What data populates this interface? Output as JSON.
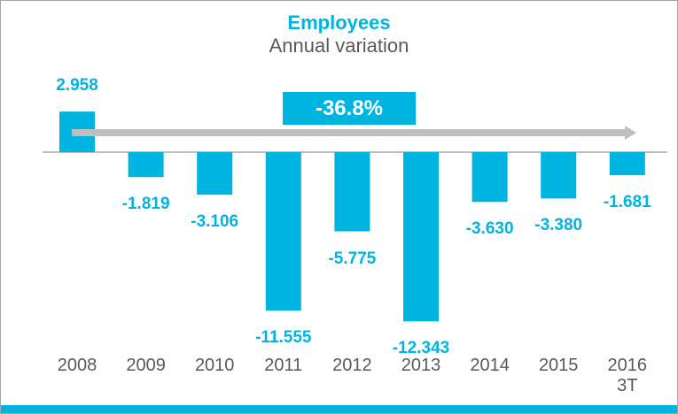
{
  "chart_data": {
    "type": "bar",
    "title": "Employees",
    "subtitle": "Annual variation",
    "annotation": "-36.8%",
    "categories": [
      "2008",
      "2009",
      "2010",
      "2011",
      "2012",
      "2013",
      "2014",
      "2015",
      "2016\n3T"
    ],
    "values": [
      2958,
      -1819,
      -3106,
      -11555,
      -5775,
      -12343,
      -3630,
      -3380,
      -1681
    ],
    "value_labels": [
      "2.958",
      "-1.819",
      "-3.106",
      "-11.555",
      "-5.775",
      "-12.343",
      "-3.630",
      "-3.380",
      "-1.681"
    ],
    "color": "#00b4e0"
  }
}
